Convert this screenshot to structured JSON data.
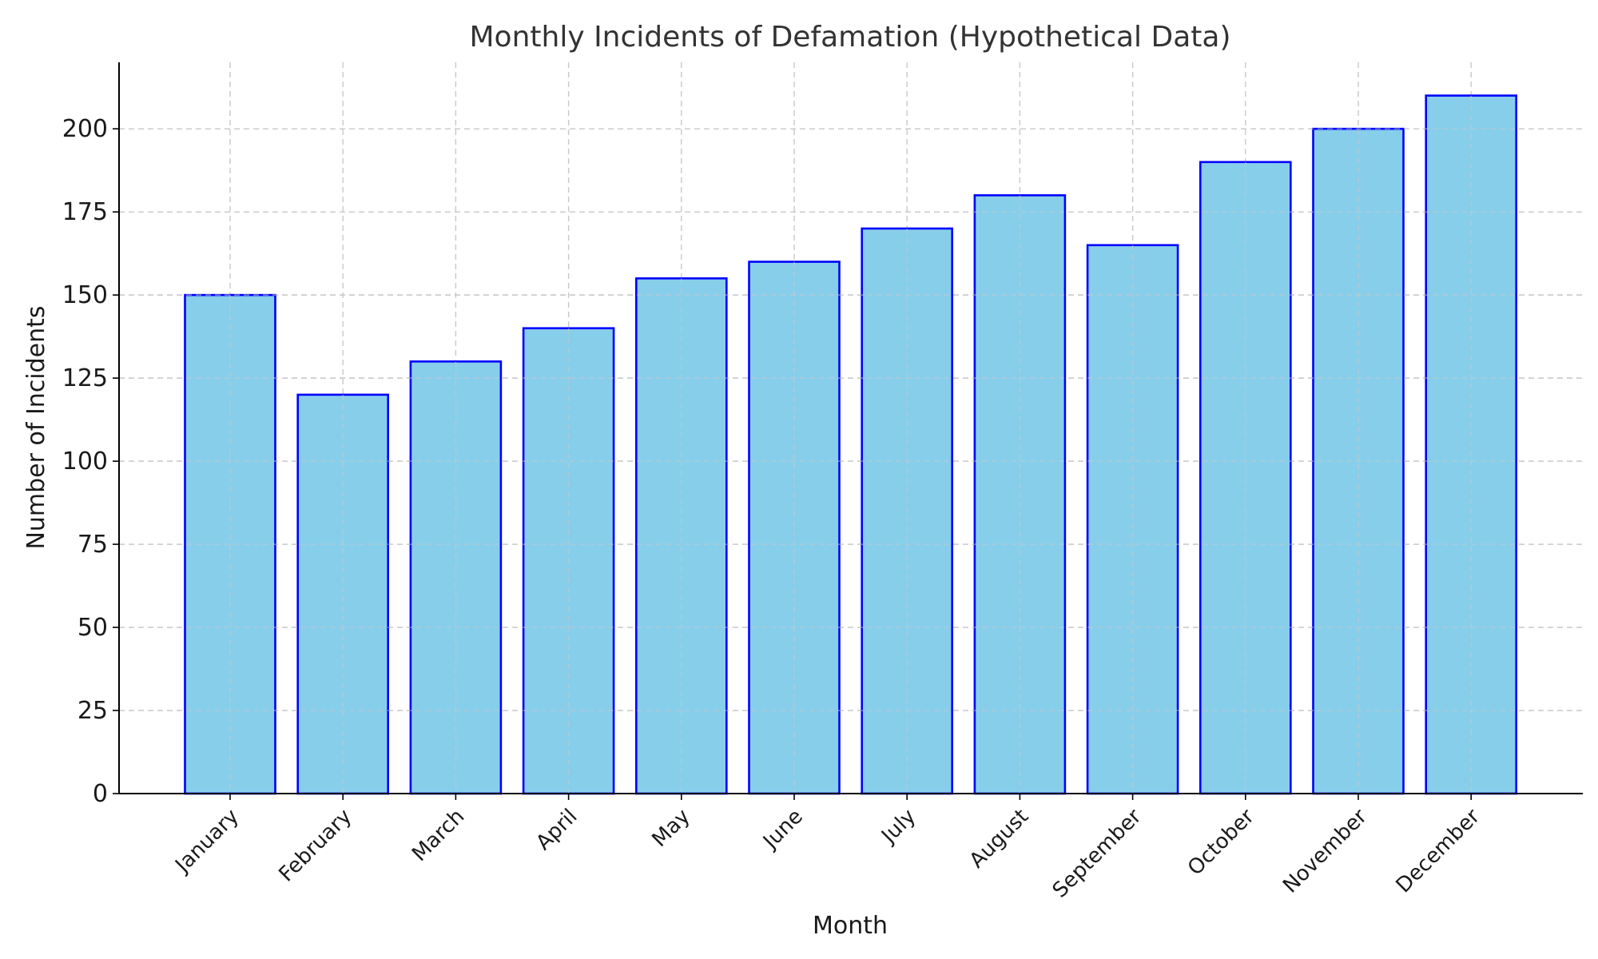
{
  "chart_data": {
    "type": "bar",
    "title": "Monthly Incidents of Defamation (Hypothetical Data)",
    "xlabel": "Month",
    "ylabel": "Number of Incidents",
    "categories": [
      "January",
      "February",
      "March",
      "April",
      "May",
      "June",
      "July",
      "August",
      "September",
      "October",
      "November",
      "December"
    ],
    "values": [
      150,
      120,
      130,
      140,
      155,
      160,
      170,
      180,
      165,
      190,
      200,
      210
    ],
    "ylim": [
      0,
      220
    ],
    "yticks": [
      0,
      25,
      50,
      75,
      100,
      125,
      150,
      175,
      200
    ],
    "grid": true,
    "bar_color": "#87ceeb",
    "bar_edge_color": "#0000ff"
  }
}
